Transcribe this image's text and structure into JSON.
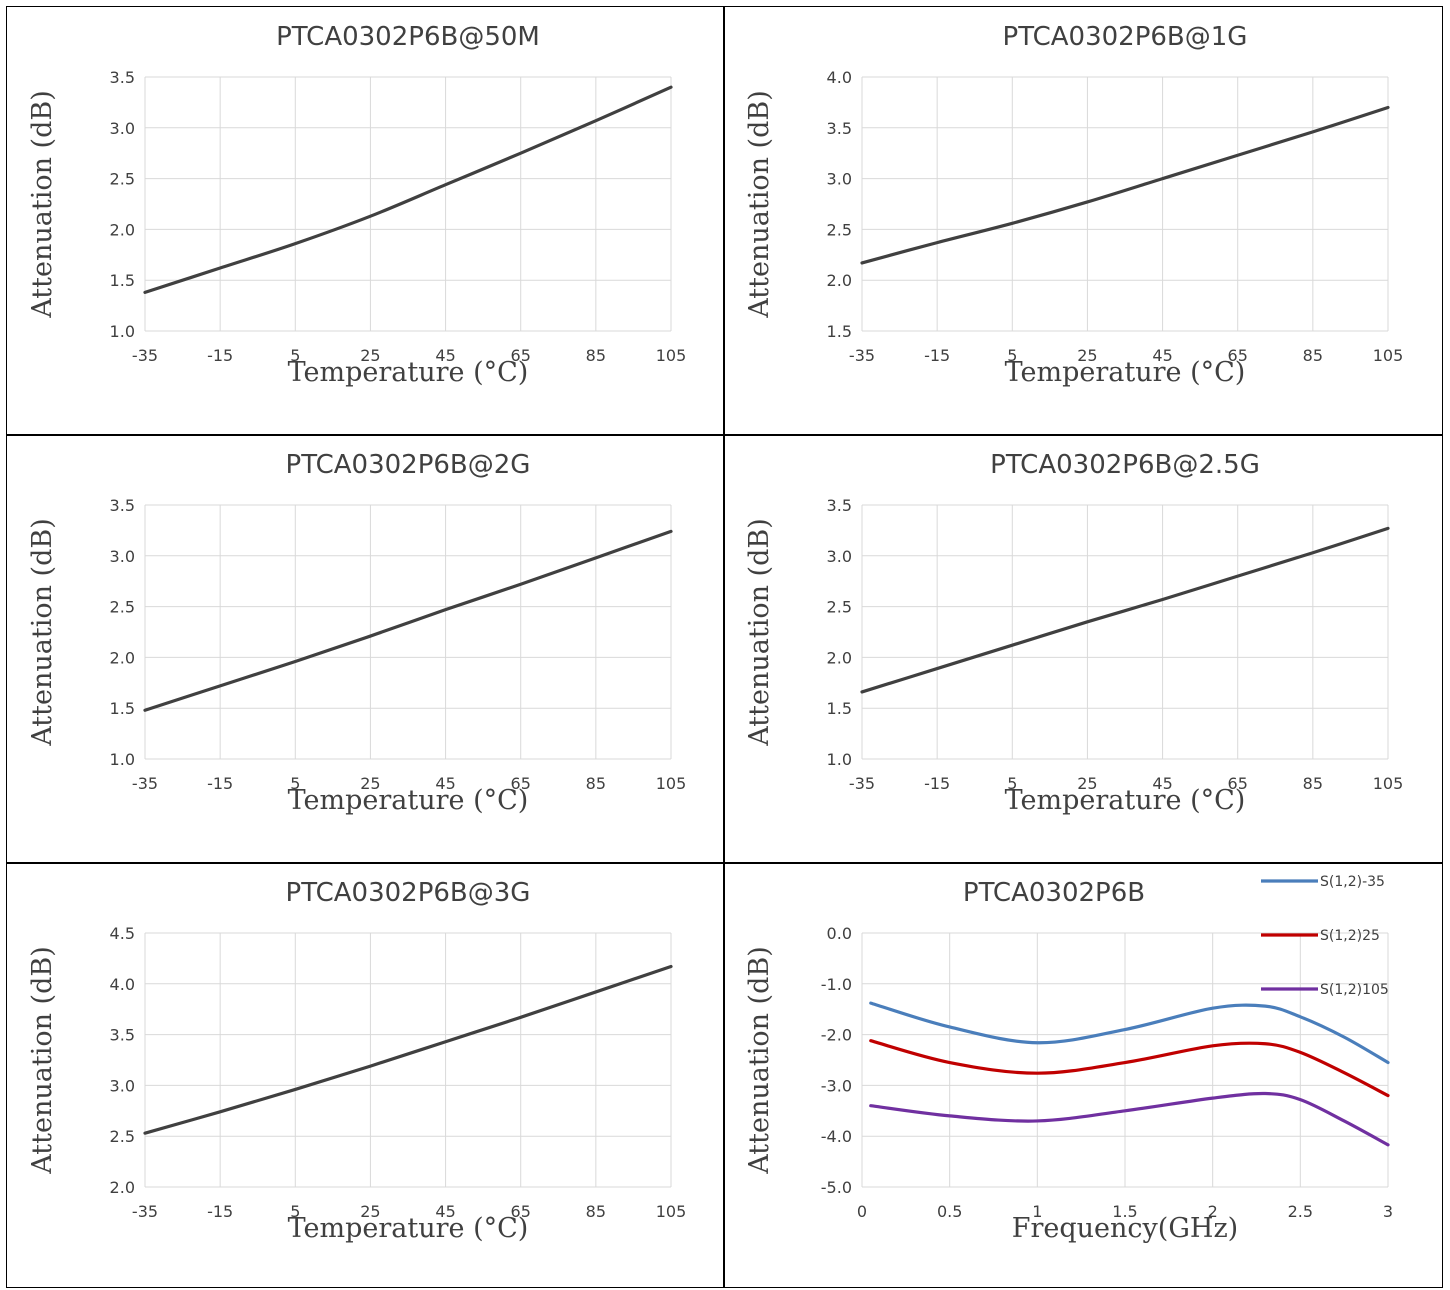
{
  "chart_data": [
    {
      "type": "line",
      "title": "PTCA0302P6B@50M",
      "xlabel": "Temperature (°C)",
      "ylabel": "Attenuation (dB)",
      "xlim": [
        -35,
        105
      ],
      "ylim": [
        1.0,
        3.5
      ],
      "xticks": [
        -35,
        -15,
        5,
        25,
        45,
        65,
        85,
        105
      ],
      "yticks": [
        1.0,
        1.5,
        2.0,
        2.5,
        3.0,
        3.5
      ],
      "xtick_labels": [
        "-35",
        "-15",
        "5",
        "25",
        "45",
        "65",
        "85",
        "105"
      ],
      "ytick_labels": [
        "1.0",
        "1.5",
        "2.0",
        "2.5",
        "3.0",
        "3.5"
      ],
      "grid": true,
      "series": [
        {
          "color": "#404040",
          "x": [
            -35,
            -15,
            5,
            25,
            45,
            65,
            85,
            105
          ],
          "y": [
            1.38,
            1.62,
            1.86,
            2.13,
            2.44,
            2.75,
            3.07,
            3.4
          ]
        }
      ]
    },
    {
      "type": "line",
      "title": "PTCA0302P6B@1G",
      "xlabel": "Temperature (°C)",
      "ylabel": "Attenuation (dB)",
      "xlim": [
        -35,
        105
      ],
      "ylim": [
        1.5,
        4.0
      ],
      "xticks": [
        -35,
        -15,
        5,
        25,
        45,
        65,
        85,
        105
      ],
      "yticks": [
        1.5,
        2.0,
        2.5,
        3.0,
        3.5,
        4.0
      ],
      "xtick_labels": [
        "-35",
        "-15",
        "5",
        "25",
        "45",
        "65",
        "85",
        "105"
      ],
      "ytick_labels": [
        "1.5",
        "2.0",
        "2.5",
        "3.0",
        "3.5",
        "4.0"
      ],
      "grid": true,
      "series": [
        {
          "color": "#404040",
          "x": [
            -35,
            -15,
            5,
            25,
            45,
            65,
            85,
            105
          ],
          "y": [
            2.17,
            2.37,
            2.56,
            2.77,
            3.0,
            3.23,
            3.46,
            3.7
          ]
        }
      ]
    },
    {
      "type": "line",
      "title": "PTCA0302P6B@2G",
      "xlabel": "Temperature (°C)",
      "ylabel": "Attenuation (dB)",
      "xlim": [
        -35,
        105
      ],
      "ylim": [
        1.0,
        3.5
      ],
      "xticks": [
        -35,
        -15,
        5,
        25,
        45,
        65,
        85,
        105
      ],
      "yticks": [
        1.0,
        1.5,
        2.0,
        2.5,
        3.0,
        3.5
      ],
      "xtick_labels": [
        "-35",
        "-15",
        "5",
        "25",
        "45",
        "65",
        "85",
        "105"
      ],
      "ytick_labels": [
        "1.0",
        "1.5",
        "2.0",
        "2.5",
        "3.0",
        "3.5"
      ],
      "grid": true,
      "series": [
        {
          "color": "#404040",
          "x": [
            -35,
            -15,
            5,
            25,
            45,
            65,
            85,
            105
          ],
          "y": [
            1.48,
            1.72,
            1.96,
            2.21,
            2.47,
            2.72,
            2.98,
            3.24
          ]
        }
      ]
    },
    {
      "type": "line",
      "title": "PTCA0302P6B@2.5G",
      "xlabel": "Temperature (°C)",
      "ylabel": "Attenuation (dB)",
      "xlim": [
        -35,
        105
      ],
      "ylim": [
        1.0,
        3.5
      ],
      "xticks": [
        -35,
        -15,
        5,
        25,
        45,
        65,
        85,
        105
      ],
      "yticks": [
        1.0,
        1.5,
        2.0,
        2.5,
        3.0,
        3.5
      ],
      "xtick_labels": [
        "-35",
        "-15",
        "5",
        "25",
        "45",
        "65",
        "85",
        "105"
      ],
      "ytick_labels": [
        "1.0",
        "1.5",
        "2.0",
        "2.5",
        "3.0",
        "3.5"
      ],
      "grid": true,
      "series": [
        {
          "color": "#404040",
          "x": [
            -35,
            -15,
            5,
            25,
            45,
            65,
            85,
            105
          ],
          "y": [
            1.66,
            1.89,
            2.12,
            2.35,
            2.57,
            2.8,
            3.03,
            3.27
          ]
        }
      ]
    },
    {
      "type": "line",
      "title": "PTCA0302P6B@3G",
      "xlabel": "Temperature (°C)",
      "ylabel": "Attenuation (dB)",
      "xlim": [
        -35,
        105
      ],
      "ylim": [
        2.0,
        4.5
      ],
      "xticks": [
        -35,
        -15,
        5,
        25,
        45,
        65,
        85,
        105
      ],
      "yticks": [
        2.0,
        2.5,
        3.0,
        3.5,
        4.0,
        4.5
      ],
      "xtick_labels": [
        "-35",
        "-15",
        "5",
        "25",
        "45",
        "65",
        "85",
        "105"
      ],
      "ytick_labels": [
        "2.0",
        "2.5",
        "3.0",
        "3.5",
        "4.0",
        "4.5"
      ],
      "grid": true,
      "series": [
        {
          "color": "#404040",
          "x": [
            -35,
            -15,
            5,
            25,
            45,
            65,
            85,
            105
          ],
          "y": [
            2.53,
            2.74,
            2.96,
            3.19,
            3.43,
            3.67,
            3.92,
            4.17
          ]
        }
      ]
    },
    {
      "type": "line",
      "title": "PTCA0302P6B",
      "xlabel": "Frequency(GHz)",
      "ylabel": "Attenuation (dB)",
      "xlim": [
        0,
        3
      ],
      "ylim": [
        -5.0,
        0.0
      ],
      "xticks": [
        0,
        0.5,
        1,
        1.5,
        2,
        2.5,
        3
      ],
      "yticks": [
        -5.0,
        -4.0,
        -3.0,
        -2.0,
        -1.0,
        0.0
      ],
      "xtick_labels": [
        "0",
        "0.5",
        "1",
        "1.5",
        "2",
        "2.5",
        "3"
      ],
      "ytick_labels": [
        "-5.0",
        "-4.0",
        "-3.0",
        "-2.0",
        "-1.0",
        "0.0"
      ],
      "grid": true,
      "legend": "top-right",
      "series": [
        {
          "name": "S(1,2)-35",
          "color": "#4a7ebb",
          "x": [
            0.05,
            0.5,
            1.0,
            1.5,
            2.0,
            2.3,
            2.5,
            2.75,
            3.0
          ],
          "y": [
            -1.38,
            -1.85,
            -2.16,
            -1.9,
            -1.48,
            -1.44,
            -1.65,
            -2.05,
            -2.55
          ]
        },
        {
          "name": "S(1,2)25",
          "color": "#c00000",
          "x": [
            0.05,
            0.5,
            1.0,
            1.5,
            2.0,
            2.3,
            2.5,
            2.75,
            3.0
          ],
          "y": [
            -2.12,
            -2.55,
            -2.76,
            -2.55,
            -2.22,
            -2.18,
            -2.35,
            -2.75,
            -3.2
          ]
        },
        {
          "name": "S(1,2)105",
          "color": "#7030a0",
          "x": [
            0.05,
            0.5,
            1.0,
            1.5,
            2.0,
            2.3,
            2.5,
            2.75,
            3.0
          ],
          "y": [
            -3.4,
            -3.6,
            -3.7,
            -3.5,
            -3.25,
            -3.16,
            -3.28,
            -3.7,
            -4.17
          ]
        }
      ]
    }
  ]
}
